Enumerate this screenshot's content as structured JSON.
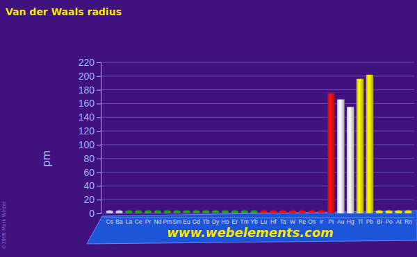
{
  "chart_data": {
    "type": "bar",
    "title": "Van der Waals radius",
    "y_label": "pm",
    "annotations": [
      "www.webelements.com",
      "©1999 Mark Winter"
    ],
    "categories": [
      "Cs",
      "Ba",
      "La",
      "Ce",
      "Pr",
      "Nd",
      "Pm",
      "Sm",
      "Eu",
      "Gd",
      "Tb",
      "Dy",
      "Ho",
      "Er",
      "Tm",
      "Yb",
      "Lu",
      "Hf",
      "Ta",
      "W",
      "Re",
      "Os",
      "Ir",
      "Pt",
      "Au",
      "Hg",
      "Tl",
      "Pb",
      "Bi",
      "Po",
      "At",
      "Rn"
    ],
    "values": [
      null,
      null,
      null,
      null,
      null,
      null,
      null,
      null,
      null,
      null,
      null,
      null,
      null,
      null,
      null,
      null,
      null,
      null,
      null,
      null,
      null,
      null,
      null,
      175,
      166,
      155,
      196,
      202,
      null,
      null,
      null,
      null
    ],
    "colors": [
      "#c8c8f0",
      "#c8c8f0",
      "#22a022",
      "#22a022",
      "#22a022",
      "#22a022",
      "#22a022",
      "#22a022",
      "#22a022",
      "#22a022",
      "#22a022",
      "#22a022",
      "#22a022",
      "#22a022",
      "#22a022",
      "#22a022",
      "#ee1111",
      "#ee1111",
      "#ee1111",
      "#ee1111",
      "#ee1111",
      "#ee1111",
      "#ee1111",
      "#ee1111",
      "#f4f4f4",
      "#f4f4f4",
      "#f2e400",
      "#f2e400",
      "#f2e400",
      "#f2e400",
      "#f2e400",
      "#f2e400"
    ],
    "ylim": [
      0,
      220
    ],
    "yticks": [
      0,
      20,
      40,
      60,
      80,
      100,
      120,
      140,
      160,
      180,
      200,
      220
    ],
    "grid": true
  }
}
